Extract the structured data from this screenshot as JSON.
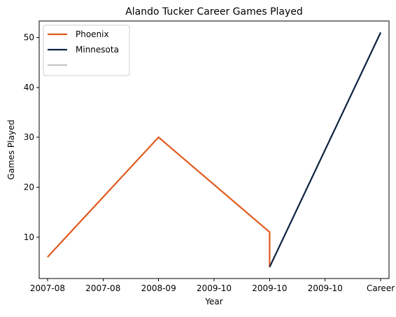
{
  "chart_data": {
    "type": "line",
    "title": "Alando Tucker Career Games Played",
    "xlabel": "Year",
    "ylabel": "Games Played",
    "categories": [
      "2007-08",
      "2007-08",
      "2008-09",
      "2009-10",
      "2009-10",
      "2009-10",
      "Career"
    ],
    "ylim": [
      1.7,
      53.3
    ],
    "yticks": [
      10,
      20,
      30,
      40,
      50
    ],
    "grid": false,
    "legend_position": "top-left",
    "series": [
      {
        "name": "Phoenix",
        "color": "#e05a1e",
        "points": [
          {
            "x": 0,
            "y": 6
          },
          {
            "x": 2,
            "y": 30
          },
          {
            "x": 4,
            "y": 11
          },
          {
            "x": 4,
            "y": 4
          }
        ]
      },
      {
        "name": "Minnesota",
        "color": "#0d2240",
        "points": [
          {
            "x": 4,
            "y": 4
          },
          {
            "x": 6,
            "y": 51
          }
        ]
      },
      {
        "name": "",
        "color": "#c4c4c4",
        "points": []
      }
    ]
  }
}
